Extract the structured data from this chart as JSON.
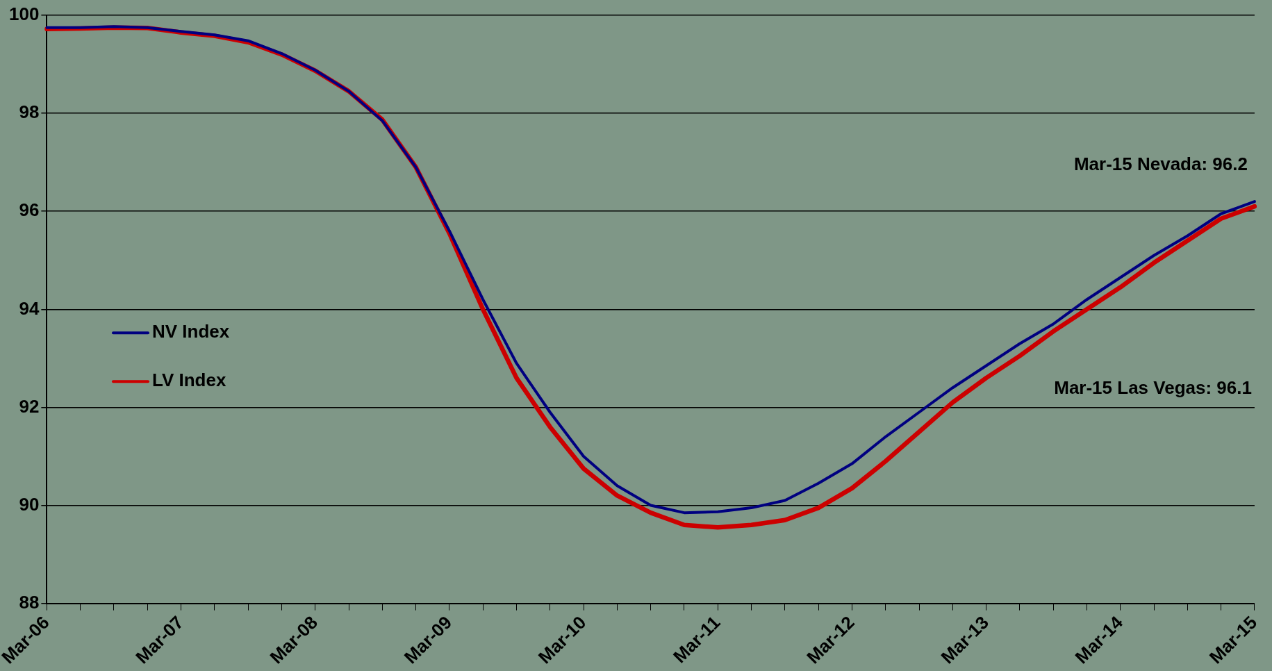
{
  "chart_data": {
    "type": "line",
    "categories": [
      "Mar-06",
      null,
      null,
      null,
      "Mar-07",
      null,
      null,
      null,
      "Mar-08",
      null,
      null,
      null,
      "Mar-09",
      null,
      null,
      null,
      "Mar-10",
      null,
      null,
      null,
      "Mar-11",
      null,
      null,
      null,
      "Mar-12",
      null,
      null,
      null,
      "Mar-13",
      null,
      null,
      null,
      "Mar-14",
      null,
      null,
      null,
      "Mar-15"
    ],
    "series": [
      {
        "name": "NV Index",
        "color": "#000080",
        "values": [
          99.75,
          99.75,
          99.77,
          99.75,
          99.67,
          99.6,
          99.48,
          99.22,
          98.88,
          98.45,
          97.85,
          96.9,
          95.6,
          94.2,
          92.9,
          91.9,
          91.0,
          90.4,
          90.0,
          89.85,
          89.87,
          89.95,
          90.1,
          90.45,
          90.85,
          91.4,
          91.9,
          92.4,
          92.85,
          93.3,
          93.7,
          94.2,
          94.65,
          95.1,
          95.5,
          95.95,
          96.2
        ]
      },
      {
        "name": "LV Index",
        "color": "#cc0000",
        "values": [
          99.72,
          99.73,
          99.75,
          99.74,
          99.65,
          99.58,
          99.45,
          99.2,
          98.87,
          98.45,
          97.87,
          96.9,
          95.55,
          94.0,
          92.6,
          91.6,
          90.75,
          90.2,
          89.85,
          89.6,
          89.55,
          89.6,
          89.7,
          89.95,
          90.35,
          90.9,
          91.5,
          92.1,
          92.6,
          93.05,
          93.55,
          94.0,
          94.45,
          94.95,
          95.4,
          95.85,
          96.1
        ]
      }
    ],
    "ylim": [
      88,
      100
    ],
    "yticks": [
      88,
      90,
      92,
      94,
      96,
      98,
      100
    ],
    "grid": "y",
    "legend": "left",
    "marker": "none",
    "line_style": "solid",
    "annotations": [
      "Mar-15 Nevada: 96.2",
      "Mar-15 Las Vegas: 96.1"
    ]
  }
}
